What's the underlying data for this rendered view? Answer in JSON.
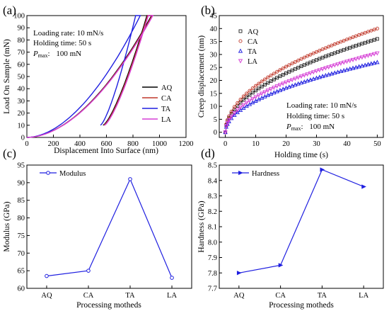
{
  "figure": {
    "panel_labels": [
      "(a)",
      "(b)",
      "(c)",
      "(d)"
    ]
  },
  "chart_data": [
    {
      "id": "a",
      "type": "line",
      "xlabel": "Displacement Into Surface (nm)",
      "ylabel": "Load On Sample (mN)",
      "xlim": [
        0,
        1200
      ],
      "ylim": [
        0,
        100
      ],
      "xticks": [
        0,
        200,
        400,
        600,
        800,
        1000,
        1200
      ],
      "yticks": [
        0,
        10,
        20,
        30,
        40,
        50,
        60,
        70,
        80,
        90,
        100
      ],
      "legend_position": "center-right",
      "annotations": [
        "Loading rate:  10 mN/s",
        "Holding time:  50 s",
        "100 mN"
      ],
      "annotation_pmax": {
        "symbol": "P",
        "subscript": "max",
        "suffix": ":"
      },
      "series": [
        {
          "name": "AQ",
          "color": "#000000",
          "x_max": 940,
          "x_hold": 905,
          "x_res": 575
        },
        {
          "name": "CA",
          "color": "#c0392b",
          "x_max": 945,
          "x_hold": 910,
          "x_res": 580
        },
        {
          "name": "TA",
          "color": "#1f1fe0",
          "x_max": 855,
          "x_hold": 820,
          "x_res": 555
        },
        {
          "name": "LA",
          "color": "#d63fd6",
          "x_max": 950,
          "x_hold": 915,
          "x_res": 585
        }
      ]
    },
    {
      "id": "b",
      "type": "scatter",
      "xlabel": "Holding time (s)",
      "ylabel": "Creep displacement (nm)",
      "xlim": [
        -2,
        52
      ],
      "ylim": [
        -2,
        45
      ],
      "xticks": [
        0,
        10,
        20,
        30,
        40,
        50
      ],
      "yticks": [
        0,
        5,
        10,
        15,
        20,
        25,
        30,
        35,
        40,
        45
      ],
      "legend_position": "top-left",
      "annotations": [
        "Loading rate:  10 mN/s",
        "Holding time:  50 s",
        "100 mN"
      ],
      "annotation_pmax": {
        "symbol": "P",
        "subscript": "max",
        "suffix": ":"
      },
      "series": [
        {
          "name": "AQ",
          "color": "#222222",
          "marker": "square",
          "y_end": 36
        },
        {
          "name": "CA",
          "color": "#c0392b",
          "marker": "circle",
          "y_end": 40
        },
        {
          "name": "TA",
          "color": "#1f1fe0",
          "marker": "triangle",
          "y_end": 27
        },
        {
          "name": "LA",
          "color": "#d63fd6",
          "marker": "triangle-down",
          "y_end": 30.5
        }
      ]
    },
    {
      "id": "c",
      "type": "line",
      "xlabel": "Processing motheds",
      "ylabel": "Modulus (GPa)",
      "categories": [
        "AQ",
        "CA",
        "TA",
        "LA"
      ],
      "ylim": [
        60,
        95
      ],
      "yticks": [
        60,
        65,
        70,
        75,
        80,
        85,
        90,
        95
      ],
      "legend_position": "top-left",
      "color": "#1f1fe0",
      "series": [
        {
          "name": "Modulus",
          "marker": "circle",
          "values": [
            63.5,
            65,
            91,
            63
          ]
        }
      ]
    },
    {
      "id": "d",
      "type": "line",
      "xlabel": "Processing motheds",
      "ylabel": "Hardness (GPa)",
      "categories": [
        "AQ",
        "CA",
        "TA",
        "LA"
      ],
      "ylim": [
        7.7,
        8.5
      ],
      "yticks": [
        7.7,
        7.8,
        7.9,
        8.0,
        8.1,
        8.2,
        8.3,
        8.4,
        8.5
      ],
      "legend_position": "top-left",
      "color": "#1f1fe0",
      "series": [
        {
          "name": "Hardness",
          "marker": "arrow-right",
          "values": [
            7.8,
            7.85,
            8.47,
            8.36
          ]
        }
      ]
    }
  ]
}
